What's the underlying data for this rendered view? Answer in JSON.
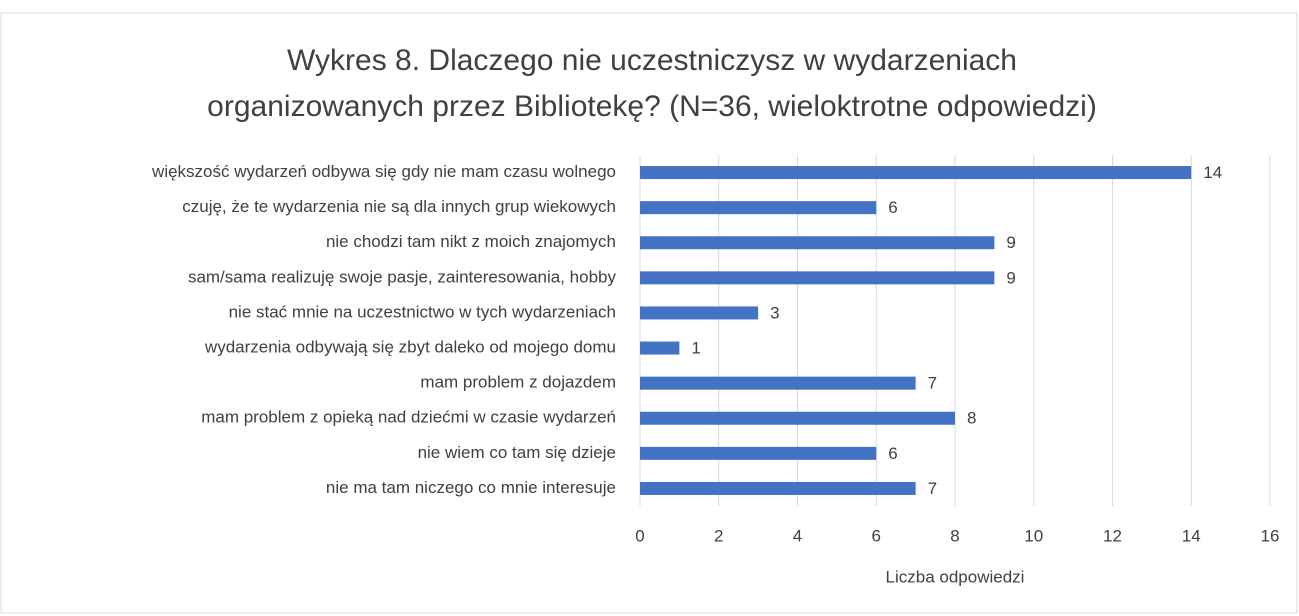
{
  "chart_data": {
    "type": "bar",
    "orientation": "horizontal",
    "title": [
      "Wykres 8. Dlaczego nie uczestniczysz w wydarzeniach",
      "organizowanych przez Bibliotekę? (N=36, wieloktrotne odpowiedzi)"
    ],
    "x_axis_label": "Liczba odpowiedzi",
    "categories": [
      "większość wydarzeń odbywa się gdy nie mam czasu wolnego",
      "czuję, że te wydarzenia nie są dla innych grup wiekowych",
      "nie chodzi tam nikt z moich znajomych",
      "sam/sama realizuję swoje pasje, zainteresowania, hobby",
      "nie stać mnie na uczestnictwo w tych wydarzeniach",
      "wydarzenia odbywają się zbyt daleko od mojego domu",
      "mam problem z dojazdem",
      "mam problem z opieką nad dziećmi w czasie wydarzeń",
      "nie wiem co tam się dzieje",
      "nie ma tam niczego co mnie interesuje"
    ],
    "values": [
      14,
      6,
      9,
      9,
      3,
      1,
      7,
      8,
      6,
      7
    ],
    "color": "#4472c4",
    "xlim": [
      0,
      16
    ],
    "xticks": [
      0,
      2,
      4,
      6,
      8,
      10,
      12,
      14,
      16
    ],
    "grid": true
  }
}
